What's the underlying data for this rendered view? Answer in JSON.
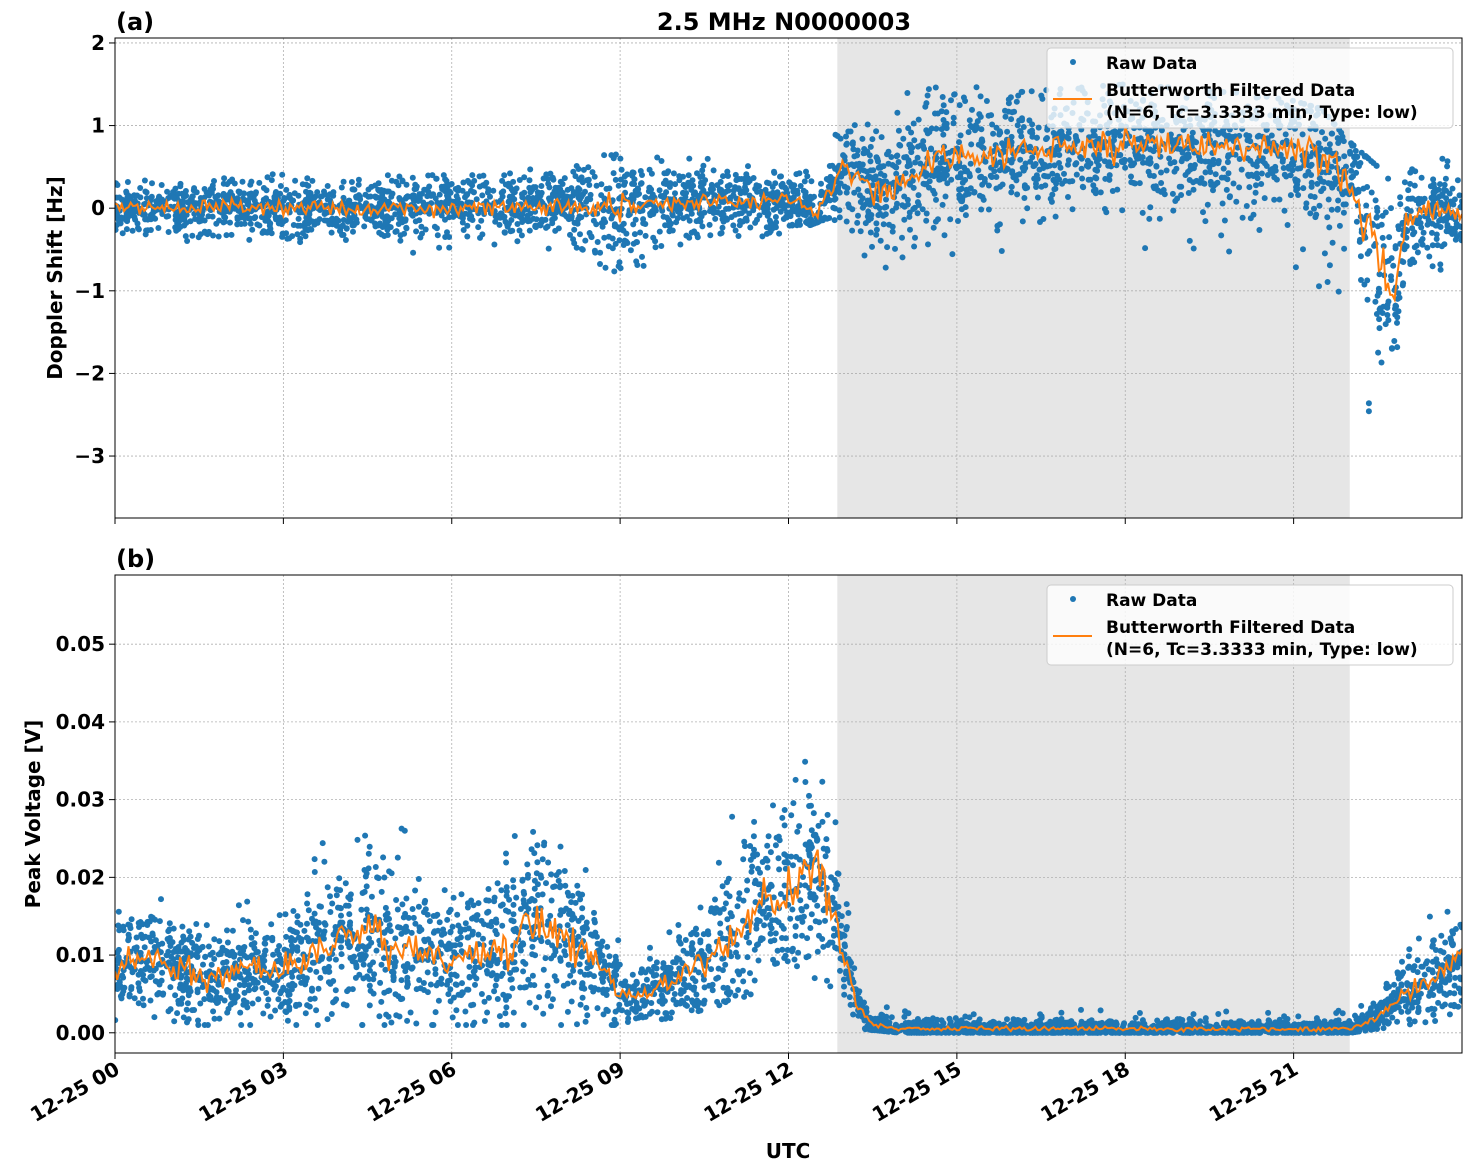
{
  "chart_data": [
    {
      "type": "scatter+line",
      "panel_label": "(a)",
      "title": "2.5 MHz N0000003",
      "ylabel": "Doppler Shift [Hz]",
      "xlabel": "",
      "xlim_hours": [
        0,
        24
      ],
      "ylim": [
        -3.75,
        2.06
      ],
      "yticks": [
        2,
        1,
        0,
        -1,
        -2,
        -3
      ],
      "ytick_labels": [
        "2",
        "1",
        "0",
        "−1",
        "−2",
        "−3"
      ],
      "shaded_region_hours": [
        12.87,
        22.0
      ],
      "grid": true,
      "legend": {
        "placement": "top-right",
        "entries": [
          "Raw Data",
          "Butterworth Filtered Data",
          "(N=6, Tc=3.3333 min, Type: low)"
        ]
      },
      "filtered": {
        "t": [
          0,
          1,
          2,
          3,
          4,
          5,
          6,
          7,
          8,
          9,
          10,
          11,
          12,
          12.5,
          13,
          13.5,
          14,
          14.5,
          15,
          16,
          17,
          18,
          19,
          20,
          21,
          21.5,
          22,
          22.5,
          22.8,
          23,
          24
        ],
        "y": [
          0,
          0,
          0.03,
          0,
          0,
          0,
          0,
          0.02,
          0.02,
          0.03,
          0.05,
          0.1,
          0.1,
          -0.05,
          0.5,
          0.2,
          0.3,
          0.55,
          0.6,
          0.7,
          0.7,
          0.8,
          0.75,
          0.72,
          0.68,
          0.6,
          0.4,
          -0.6,
          -1.0,
          -0.1,
          0
        ]
      },
      "raw_envelope": {
        "t": [
          0,
          2,
          4,
          6,
          8,
          9,
          10,
          11,
          12,
          12.8,
          13,
          14,
          15,
          16,
          18,
          20,
          21,
          21.5,
          22,
          22.5,
          23,
          24
        ],
        "low": [
          -0.5,
          -0.4,
          -0.5,
          -0.6,
          -0.5,
          -1.3,
          -0.6,
          -0.4,
          -0.3,
          -0.1,
          -0.5,
          -0.8,
          -0.7,
          -0.5,
          -0.5,
          -0.6,
          -0.8,
          -1.0,
          -1.5,
          -3.0,
          -1.2,
          -0.6
        ],
        "high": [
          0.3,
          0.45,
          0.4,
          0.4,
          0.5,
          0.7,
          0.6,
          0.6,
          0.5,
          1.0,
          0.9,
          1.6,
          1.5,
          1.4,
          1.5,
          1.4,
          1.3,
          1.2,
          0.8,
          0.5,
          0.5,
          0.7
        ]
      }
    },
    {
      "type": "scatter+line",
      "panel_label": "(b)",
      "ylabel": "Peak Voltage [V]",
      "xlabel": "UTC",
      "xlim_hours": [
        0,
        24
      ],
      "ylim": [
        -0.0026,
        0.0589
      ],
      "yticks": [
        0,
        0.01,
        0.02,
        0.03,
        0.04,
        0.05
      ],
      "ytick_labels": [
        "0.00",
        "0.01",
        "0.02",
        "0.03",
        "0.04",
        "0.05"
      ],
      "xtick_hours": [
        0,
        3,
        6,
        9,
        12,
        15,
        18,
        21
      ],
      "xtick_labels": [
        "12-25 00",
        "12-25 03",
        "12-25 06",
        "12-25 09",
        "12-25 12",
        "12-25 15",
        "12-25 18",
        "12-25 21"
      ],
      "shaded_region_hours": [
        12.87,
        22.0
      ],
      "grid": true,
      "legend": {
        "placement": "top-right",
        "entries": [
          "Raw Data",
          "Butterworth Filtered Data",
          "(N=6, Tc=3.3333 min, Type: low)"
        ]
      },
      "filtered": {
        "t": [
          0,
          0.5,
          1,
          1.5,
          2,
          2.5,
          3,
          3.5,
          4,
          4.5,
          5,
          5.5,
          6,
          6.5,
          7,
          7.5,
          8,
          8.5,
          9,
          9.5,
          10,
          10.5,
          11,
          11.5,
          12,
          12.4,
          12.8,
          13.2,
          13.5,
          14,
          22,
          22.5,
          23,
          23.5,
          24
        ],
        "y": [
          0.008,
          0.01,
          0.009,
          0.007,
          0.007,
          0.009,
          0.008,
          0.01,
          0.012,
          0.013,
          0.01,
          0.011,
          0.009,
          0.01,
          0.011,
          0.015,
          0.012,
          0.01,
          0.005,
          0.005,
          0.007,
          0.009,
          0.012,
          0.017,
          0.018,
          0.022,
          0.016,
          0.004,
          0.001,
          0.0005,
          0.0005,
          0.002,
          0.005,
          0.007,
          0.01
        ]
      },
      "raw_envelope": {
        "t": [
          0,
          1,
          2,
          3,
          4,
          5,
          6,
          7,
          8,
          9,
          10,
          11,
          11.7,
          12.3,
          12.8,
          13.3,
          14,
          22,
          22.5,
          23,
          24
        ],
        "low": [
          0.001,
          0.001,
          0.001,
          0.001,
          0.001,
          0.001,
          0.001,
          0.001,
          0.001,
          0.001,
          0.002,
          0.004,
          0.006,
          0.006,
          0.005,
          0.0005,
          0,
          0,
          0.0005,
          0.001,
          0.002
        ],
        "high": [
          0.02,
          0.018,
          0.018,
          0.02,
          0.028,
          0.027,
          0.022,
          0.03,
          0.03,
          0.012,
          0.015,
          0.03,
          0.045,
          0.04,
          0.03,
          0.005,
          0.003,
          0.003,
          0.006,
          0.012,
          0.02
        ]
      }
    }
  ],
  "colors": {
    "raw": "#1f77b4",
    "filtered": "#ff7f0e",
    "shade": "#e6e6e6"
  }
}
